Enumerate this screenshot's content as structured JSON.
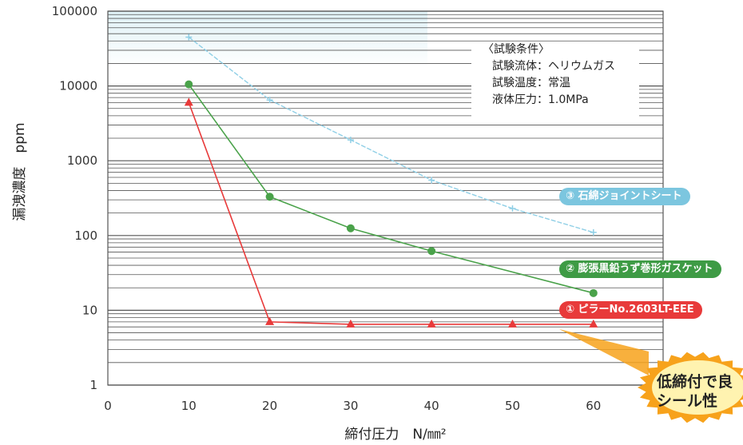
{
  "chart_data": {
    "type": "line",
    "ylabel": "漏洩濃度　ppm",
    "xlabel": "締付圧力　N/㎜²",
    "y_scale": "log",
    "ylim": [
      1,
      100000
    ],
    "xlim": [
      0,
      60
    ],
    "x_ticks": [
      "0",
      "10",
      "20",
      "30",
      "40",
      "50",
      "60"
    ],
    "y_ticks": [
      "1",
      "10",
      "100",
      "1000",
      "10000",
      "100000"
    ],
    "grid": true,
    "legend_placement": "right",
    "series": [
      {
        "name": "③ 石綿ジョイントシート",
        "color": "#8fcfe6",
        "marker": "cross",
        "x": [
          10,
          20,
          30,
          40,
          50,
          60
        ],
        "y": [
          45000,
          6500,
          1900,
          550,
          230,
          110
        ]
      },
      {
        "name": "② 膨張黒鉛うず巻形ガスケット",
        "color": "#4aa24a",
        "marker": "circle",
        "x": [
          10,
          20,
          30,
          40,
          60
        ],
        "y": [
          10500,
          330,
          125,
          62,
          17
        ]
      },
      {
        "name": "① ピラーNo.2603LT-EEE",
        "color": "#e83a3a",
        "marker": "triangle",
        "x": [
          10,
          20,
          30,
          40,
          50,
          60
        ],
        "y": [
          6000,
          7,
          6.5,
          6.5,
          6.5,
          6.5
        ]
      }
    ],
    "annotations": {
      "conditions_title": "〈試験条件〉",
      "conditions": [
        "試験流体：ヘリウムガス",
        "試験温度：常温",
        "液体圧力：1.0MPa"
      ],
      "callout": [
        "低締付で良",
        "シール性"
      ]
    }
  },
  "colors": {
    "grid": "#555555",
    "frame": "#555555",
    "callout": "#f7a21b"
  }
}
